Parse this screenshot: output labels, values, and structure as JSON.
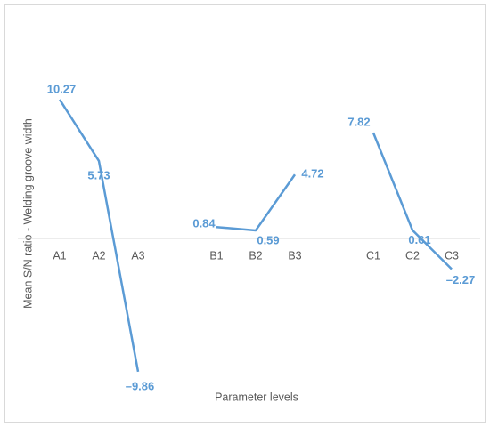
{
  "chart_data": {
    "type": "line",
    "categories": [
      "A1",
      "A2",
      "A3",
      null,
      "B1",
      "B2",
      "B3",
      null,
      "C1",
      "C2",
      "C3"
    ],
    "series": [
      {
        "name": null,
        "color": "#5b9bd5",
        "values": [
          10.27,
          5.73,
          -9.86,
          null,
          0.84,
          0.59,
          4.72,
          null,
          7.82,
          0.61,
          -2.27
        ],
        "value_labels": [
          "10.27",
          "5.73",
          "–9.86",
          null,
          "0.84",
          "0.59",
          "4.72",
          null,
          "7.82",
          "0.61",
          "–2.27"
        ]
      }
    ],
    "ylim": [
      -10,
      15
    ],
    "xlabel": "Parameter levels",
    "ylabel": "Mean S/N ratio - Welding groove width"
  }
}
